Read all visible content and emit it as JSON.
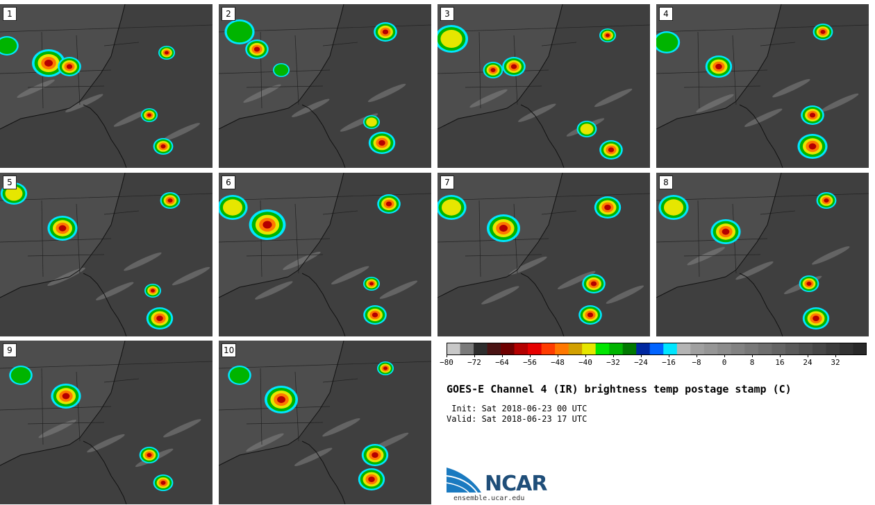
{
  "panels": [
    {
      "label": "1"
    },
    {
      "label": "2"
    },
    {
      "label": "3"
    },
    {
      "label": "4"
    },
    {
      "label": "5"
    },
    {
      "label": "6"
    },
    {
      "label": "7"
    },
    {
      "label": "8"
    },
    {
      "label": "9"
    },
    {
      "label": "10"
    }
  ],
  "colorbar": {
    "colors": [
      "#c8c8c8",
      "#7a7a7a",
      "#2e2e2e",
      "#4a1414",
      "#6e0000",
      "#b40000",
      "#e60000",
      "#ff3c00",
      "#ff7800",
      "#d2a000",
      "#e6e600",
      "#00e600",
      "#00b400",
      "#007800",
      "#0028a0",
      "#0064ff",
      "#00e6ff",
      "#b4b4b4",
      "#a0a0a0",
      "#969696",
      "#8c8c8c",
      "#828282",
      "#787878",
      "#6e6e6e",
      "#646464",
      "#5a5a5a",
      "#505050",
      "#464646",
      "#3c3c3c",
      "#323232",
      "#282828"
    ],
    "ticks": [
      "−80",
      "−72",
      "−64",
      "−56",
      "−48",
      "−40",
      "−32",
      "−24",
      "−16",
      "−8",
      "0",
      "8",
      "16",
      "24",
      "32"
    ]
  },
  "title": "GOES-E Channel 4 (IR) brightness temp postage stamp (C)",
  "init": " Init: Sat 2018-06-23 00 UTC",
  "valid": "Valid: Sat 2018-06-23 17 UTC",
  "logo": {
    "text": "NCAR",
    "url": "ensemble.ucar.edu"
  }
}
